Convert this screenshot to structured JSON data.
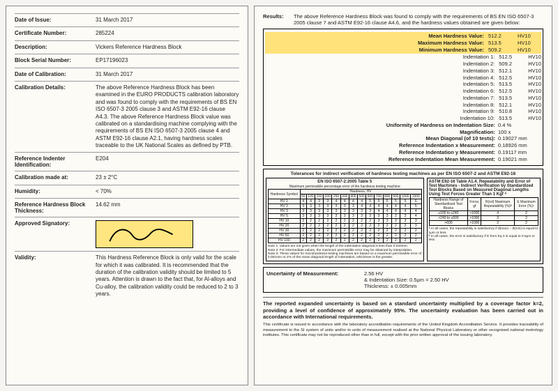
{
  "left": {
    "fields": [
      {
        "label": "Date of Issue:",
        "value": "31 March 2017"
      },
      {
        "label": "Certificate Number:",
        "value": "285224"
      },
      {
        "label": "Description:",
        "value": "Vickers Reference Hardness Block"
      },
      {
        "label": "Block Serial Number:",
        "value": "EP17196023"
      },
      {
        "label": "Date of Calibration:",
        "value": "31 March 2017"
      },
      {
        "label": "Calibration Details:",
        "value": "The above Reference Hardness Block has been examined in the EURO PRODUCTS calibration laboratory and was found to comply with the requirements of BS EN ISO 6507-3 2005 clause 3 and ASTM E92-16 clause A4.3. The above Reference Hardness Block value was calibrated on a standardising machine complying with the requirements of BS EN ISO 6507-3 2005 clause 4 and ASTM E92-16 clause A2.1, having hardness scales traceable to the UK National Scales as defined by PTB."
      },
      {
        "label": "Reference Indenter Identification:",
        "value": "E204"
      },
      {
        "label": "Calibration made at:",
        "value": "23 ± 2°C"
      },
      {
        "label": "Humidity:",
        "value": "< 70%"
      },
      {
        "label": "Reference Hardness Block Thickness:",
        "value": "14.62 mm"
      },
      {
        "label": "Approved Signatory:",
        "value": "__SIG__"
      },
      {
        "label": "Validity:",
        "value": "This Hardness Reference Block is only valid for the scale for which it was calibrated. It is recommended that the duration of the calibration validity should be limited to 5 years. Attention is drawn to the fact that, for Al-alloys and Cu-alloy, the calibration validity could be reduced to 2 to 3 years."
      }
    ]
  },
  "right": {
    "results_label": "Results:",
    "results_text": "The above Reference Hardness Block was found to comply with the requirements of BS EN ISO 6507-3 2005 clause 7 and ASTM E92-16 clause A4.6, and the hardness values obtained are given below:",
    "stats": [
      {
        "label": "Mean Hardness Value:",
        "value": "512.2",
        "unit": "HV10"
      },
      {
        "label": "Maximum Hardness Value:",
        "value": "513.5",
        "unit": "HV10"
      },
      {
        "label": "Minimum Hardness Value:",
        "value": "509.2",
        "unit": "HV10"
      }
    ],
    "indentations": [
      {
        "label": "Indentation 1:",
        "value": "512.5",
        "unit": "HV10"
      },
      {
        "label": "Indentation 2:",
        "value": "509.2",
        "unit": "HV10"
      },
      {
        "label": "Indentation 3:",
        "value": "512.1",
        "unit": "HV10"
      },
      {
        "label": "Indentation 4:",
        "value": "512.5",
        "unit": "HV10"
      },
      {
        "label": "Indentation 5:",
        "value": "513.5",
        "unit": "HV10"
      },
      {
        "label": "Indentation 6:",
        "value": "512.5",
        "unit": "HV10"
      },
      {
        "label": "Indentation 7:",
        "value": "513.5",
        "unit": "HV10"
      },
      {
        "label": "Indentation 8:",
        "value": "512.1",
        "unit": "HV10"
      },
      {
        "label": "Indentation 9:",
        "value": "510.8",
        "unit": "HV10"
      },
      {
        "label": "Indentation 10:",
        "value": "513.5",
        "unit": "HV10"
      }
    ],
    "refs": [
      {
        "label": "Uniformity of Hardness on Indentation Size:",
        "value": "0.4 %"
      },
      {
        "label": "Magnification:",
        "value": "100 x"
      },
      {
        "label": "Mean Diagonal (of 10 tests):",
        "value": "0.19027 mm"
      },
      {
        "label": "Reference Indentation x Measurement:",
        "value": "0.18926 mm"
      },
      {
        "label": "Reference Indentation y Measurement:",
        "value": "0.19117 mm"
      },
      {
        "label": "Reference Indentation Mean Measurement:",
        "value": "0.19021 mm"
      }
    ],
    "tol_title": "Tolerances for indirect verification of hardness testing machines as per EN ISO 6507-2 and ASTM E92-16",
    "tol_left_title": "EN ISO 6507-2:2005 Table 5",
    "tol_left_sub": "Maximum permissible percentage error of the hardness testing machine",
    "tol_left_hdr1": "Hardness Symbol",
    "tol_left_hdr2": "Hardness, HV",
    "tol_left_cols": [
      "50",
      "100",
      "150",
      "200",
      "250",
      "300",
      "400",
      "500",
      "600",
      "700",
      "800",
      "900",
      "1000",
      "1500"
    ],
    "tol_left_rows": [
      {
        "h": "HV 1",
        "v": [
          "4",
          "4",
          "3",
          "3",
          "4",
          "4",
          "4",
          "4",
          "5",
          "5",
          "5",
          "5",
          "5",
          "6"
        ]
      },
      {
        "h": "HV 2",
        "v": [
          "3",
          "3",
          "3",
          "3",
          "3",
          "3",
          "3",
          "4",
          "4",
          "4",
          "4",
          "4",
          "4",
          "5"
        ]
      },
      {
        "h": "HV 3",
        "v": [
          "3",
          "3",
          "3",
          "3",
          "3",
          "3",
          "3",
          "3",
          "3",
          "4",
          "4",
          "4",
          "4",
          "4"
        ]
      },
      {
        "h": "HV 5",
        "v": [
          "3",
          "3",
          "3",
          "3",
          "3",
          "3",
          "3",
          "3",
          "3",
          "3",
          "3",
          "3",
          "3",
          "4"
        ]
      },
      {
        "h": "HV 10",
        "v": [
          "2",
          "2",
          "2",
          "2",
          "2",
          "2",
          "2",
          "2",
          "2",
          "3",
          "3",
          "3",
          "3",
          "3"
        ]
      },
      {
        "h": "HV 20",
        "v": [
          "2",
          "2",
          "2",
          "2",
          "2",
          "2",
          "2",
          "2",
          "2",
          "2",
          "2",
          "2",
          "2",
          "3"
        ]
      },
      {
        "h": "HV 30",
        "v": [
          "2",
          "2",
          "2",
          "2",
          "2",
          "2",
          "2",
          "2",
          "2",
          "2",
          "2",
          "2",
          "2",
          "2"
        ]
      },
      {
        "h": "HV 50",
        "v": [
          "2",
          "2",
          "2",
          "2",
          "2",
          "2",
          "2",
          "2",
          "2",
          "2",
          "2",
          "2",
          "2",
          "2"
        ]
      },
      {
        "h": "HV 100",
        "v": [
          "2",
          "2",
          "2",
          "2",
          "2",
          "2",
          "2",
          "2",
          "2",
          "2",
          "2",
          "2",
          "2",
          "2"
        ]
      }
    ],
    "tol_notes": "Note 1: Values are not given when the length of the indentation diagonal is less than 0.020mm.\nNote 2: For intermediate values, the maximum permissible error may be obtained by interpolation.\nNote 3: These values for microhardness testing machines are based on a maximum permissible error of 0.001mm or 2% of the mean diagonal length of indentation, whichever is the greater.",
    "tol_right_title": "ASTM E92-16 Table A1.4. Repeatability and Error of Test Machines - Indirect Verification by Standardized Test Blocks Based on Measured Diagonal Lengths Using Test Forces Greater Than 1 Kgf ᴬ",
    "tol_right_hdrs": [
      "Hardness Range of Standardised Test Blocks",
      "Force, gf",
      "R(rel) Maximum Repeatability (%)ᴮ",
      "E Maximum Error (%)ᶜ"
    ],
    "tol_right_rows": [
      [
        "≥100 to ≤240",
        ">1000",
        "4",
        "2"
      ],
      [
        ">240 to ≤600",
        ">1000",
        "3",
        "2"
      ],
      [
        ">600",
        ">1000",
        "2",
        "2"
      ]
    ],
    "tol_right_notes": "ᴬ In all cases, the repeatability is satisfactory if d̄(max) − d̄(min) is equal to 1µm or less.\nᴮ In all cases, the error is satisfactory if E from Eq 3 is equal to 0.5µm or less.",
    "uncertainty_label": "Uncertainty of Measurement:",
    "uncertainty_value": "2.56 HV\n& Indentation Size: 0.5µm = 2.50 HV\nThickness: ± 0.005mm",
    "footer1": "The reported expanded uncertainty is based on a standard uncertainty multiplied by a coverage factor k=2, providing a level of confidence of approximately 95%. The uncertainty evaluation has been carried out in accordance with International requirements.",
    "footer2": "This certificate is issued in accordance with the laboratory accreditation requirements of the United Kingdom Accreditation Service. It provides traceability of measurement to the SI system of units and/or to units of measurement realised at the National Physical Laboratory or other recognised national metrology institutes. This certificate may not be reproduced other than in full, except with the prior written approval of the issuing laboratory."
  }
}
